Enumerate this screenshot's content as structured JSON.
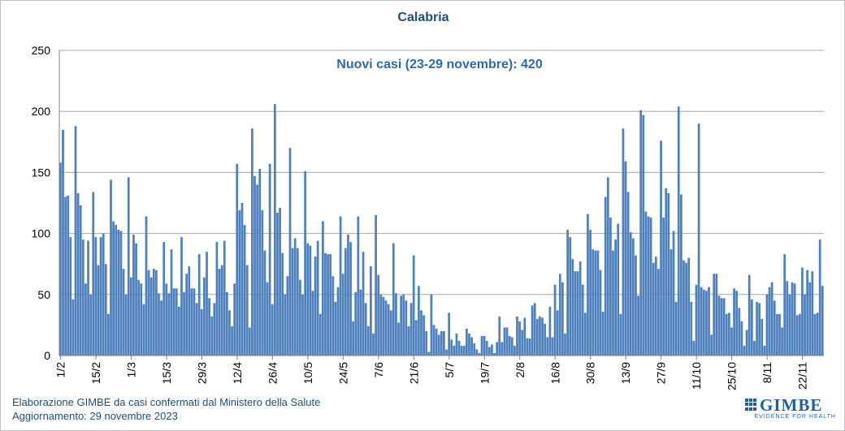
{
  "chart_data": {
    "type": "bar",
    "title": "Calabria",
    "subtitle": "Nuovi casi (23-29 novembre): 420",
    "ylim": [
      0,
      250
    ],
    "yticks": [
      0,
      50,
      100,
      150,
      200,
      250
    ],
    "grid": true,
    "legend": "none",
    "bar_color": "#4f81bd",
    "x_start": "1/2",
    "x_end": "29/11",
    "xtick_labels": [
      "1/2",
      "15/2",
      "1/3",
      "15/3",
      "29/3",
      "12/4",
      "26/4",
      "10/5",
      "24/5",
      "7/6",
      "21/6",
      "5/7",
      "19/7",
      "2/8",
      "16/8",
      "30/8",
      "13/9",
      "27/9",
      "11/10",
      "25/10",
      "8/11",
      "22/11"
    ],
    "values": [
      158,
      185,
      130,
      131,
      97,
      46,
      188,
      133,
      123,
      95,
      59,
      94,
      50,
      134,
      97,
      74,
      97,
      100,
      75,
      34,
      144,
      110,
      107,
      103,
      102,
      71,
      50,
      146,
      64,
      99,
      92,
      62,
      59,
      42,
      114,
      70,
      64,
      71,
      70,
      51,
      45,
      93,
      59,
      51,
      87,
      55,
      55,
      40,
      97,
      52,
      67,
      73,
      55,
      55,
      43,
      83,
      38,
      64,
      85,
      47,
      32,
      43,
      93,
      71,
      74,
      94,
      52,
      37,
      24,
      59,
      157,
      119,
      125,
      107,
      74,
      23,
      186,
      147,
      140,
      153,
      119,
      86,
      60,
      157,
      42,
      206,
      117,
      121,
      84,
      50,
      65,
      170,
      88,
      96,
      88,
      62,
      50,
      151,
      92,
      90,
      53,
      81,
      94,
      34,
      110,
      84,
      83,
      83,
      65,
      44,
      56,
      114,
      67,
      88,
      99,
      93,
      28,
      52,
      114,
      54,
      85,
      43,
      24,
      73,
      18,
      115,
      66,
      50,
      48,
      45,
      42,
      37,
      92,
      51,
      27,
      49,
      50,
      45,
      24,
      43,
      82,
      29,
      57,
      37,
      33,
      20,
      3,
      50,
      25,
      22,
      17,
      20,
      20,
      5,
      35,
      13,
      8,
      18,
      12,
      8,
      8,
      22,
      18,
      15,
      10,
      5,
      2,
      16,
      16,
      12,
      7,
      9,
      2,
      11,
      32,
      11,
      23,
      23,
      16,
      15,
      8,
      32,
      28,
      21,
      31,
      14,
      14,
      41,
      43,
      30,
      32,
      31,
      26,
      15,
      40,
      15,
      58,
      37,
      67,
      60,
      18,
      103,
      97,
      79,
      69,
      69,
      77,
      58,
      35,
      116,
      103,
      87,
      86,
      86,
      70,
      36,
      130,
      146,
      113,
      86,
      95,
      108,
      34,
      186,
      159,
      134,
      101,
      96,
      82,
      49,
      201,
      197,
      118,
      114,
      113,
      76,
      81,
      71,
      176,
      113,
      137,
      133,
      87,
      102,
      44,
      204,
      132,
      78,
      76,
      80,
      44,
      12,
      58,
      190,
      56,
      54,
      53,
      56,
      17,
      67,
      67,
      49,
      47,
      47,
      34,
      35,
      23,
      55,
      53,
      39,
      28,
      8,
      21,
      66,
      46,
      12,
      44,
      43,
      30,
      8,
      50,
      56,
      60,
      45,
      34,
      34,
      23,
      83,
      61,
      50,
      60,
      59,
      33,
      34,
      72,
      50,
      70,
      60,
      69,
      34,
      35,
      95,
      57
    ]
  },
  "footer": {
    "line1": "Elaborazione GIMBE da casi confermati dal Ministero della Salute",
    "line2": "Aggiornamento: 29 novembre 2023"
  },
  "logo": {
    "name": "GIMBE",
    "tagline": "EVIDENCE FOR HEALTH"
  }
}
